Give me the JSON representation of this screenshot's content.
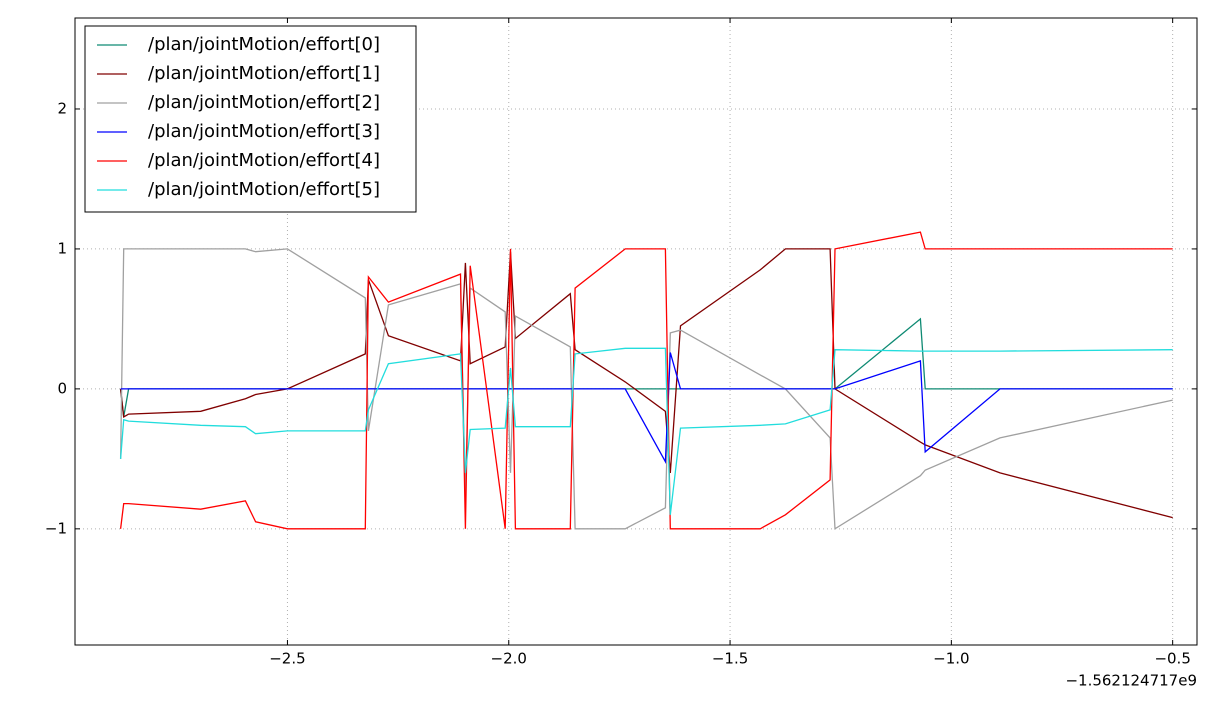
{
  "chart_data": {
    "type": "line",
    "x": [
      -2.877,
      -2.87,
      -2.859,
      -2.696,
      -2.595,
      -2.572,
      -2.5,
      -2.324,
      -2.317,
      -2.272,
      -2.109,
      -2.098,
      -2.087,
      -2.008,
      -1.996,
      -1.985,
      -1.861,
      -1.85,
      -1.737,
      -1.646,
      -1.635,
      -1.612,
      -1.432,
      -1.375,
      -1.274,
      -1.263,
      -1.07,
      -1.059,
      -0.89,
      -0.5
    ],
    "x_offset_label": "−1.562124717e9",
    "series": [
      {
        "name": "/plan/jointMotion/effort[0]",
        "color": "#0e8a73",
        "values": [
          0,
          -0.2,
          0,
          0,
          0,
          0,
          0,
          0,
          0,
          0,
          0,
          0,
          0,
          0,
          0,
          0,
          0,
          0,
          0,
          0,
          0,
          0,
          0,
          0,
          0,
          0,
          0.5,
          0,
          0,
          0
        ]
      },
      {
        "name": "/plan/jointMotion/effort[1]",
        "color": "#800000",
        "values": [
          0,
          -0.2,
          -0.18,
          -0.16,
          -0.07,
          -0.04,
          0,
          0.25,
          0.78,
          0.38,
          0.2,
          0.9,
          0.18,
          0.3,
          0.98,
          0.36,
          0.68,
          0.28,
          0.05,
          -0.16,
          -0.6,
          0.45,
          0.85,
          1.0,
          1.0,
          0,
          -0.38,
          -0.4,
          -0.6,
          -0.92
        ]
      },
      {
        "name": "/plan/jointMotion/effort[2]",
        "color": "#a0a0a0",
        "values": [
          -0.5,
          1.0,
          1.0,
          1.0,
          1.0,
          0.98,
          1.0,
          0.65,
          -0.3,
          0.6,
          0.75,
          -0.8,
          0.72,
          0.55,
          -0.6,
          0.52,
          0.3,
          -1.0,
          -1.0,
          -0.85,
          0.4,
          0.42,
          0.1,
          0,
          -0.35,
          -1.0,
          -0.62,
          -0.58,
          -0.35,
          -0.08
        ]
      },
      {
        "name": "/plan/jointMotion/effort[3]",
        "color": "#0000ff",
        "values": [
          0,
          0,
          0,
          0,
          0,
          0,
          0,
          0,
          0,
          0,
          0,
          0,
          0,
          0,
          0,
          0,
          0,
          0,
          0,
          -0.52,
          0.26,
          0,
          0,
          0,
          0,
          0,
          0.2,
          -0.45,
          0,
          0
        ]
      },
      {
        "name": "/plan/jointMotion/effort[4]",
        "color": "#ff0000",
        "values": [
          -1.0,
          -0.82,
          -0.82,
          -0.86,
          -0.8,
          -0.95,
          -1.0,
          -1.0,
          0.8,
          0.62,
          0.82,
          -1.0,
          0.88,
          -1.0,
          1.0,
          -1.0,
          -1.0,
          0.72,
          1.0,
          1.0,
          -1.0,
          -1.0,
          -1.0,
          -0.9,
          -0.65,
          1.0,
          1.12,
          1.0,
          1.0,
          1.0
        ]
      },
      {
        "name": "/plan/jointMotion/effort[5]",
        "color": "#22dddd",
        "values": [
          -0.5,
          -0.22,
          -0.23,
          -0.26,
          -0.27,
          -0.32,
          -0.3,
          -0.3,
          -0.15,
          0.18,
          0.25,
          -0.6,
          -0.29,
          -0.28,
          0.15,
          -0.27,
          -0.27,
          0.25,
          0.29,
          0.29,
          -0.9,
          -0.28,
          -0.26,
          -0.25,
          -0.15,
          0.28,
          0.27,
          0.27,
          0.27,
          0.28
        ]
      }
    ],
    "xlim": [
      -2.98,
      -0.445
    ],
    "ylim": [
      -1.83,
      2.65
    ],
    "xticks": [
      {
        "value": -2.5,
        "label": "−2.5"
      },
      {
        "value": -2.0,
        "label": "−2.0"
      },
      {
        "value": -1.5,
        "label": "−1.5"
      },
      {
        "value": -1.0,
        "label": "−1.0"
      },
      {
        "value": -0.5,
        "label": "−0.5"
      }
    ],
    "yticks": [
      {
        "value": -1,
        "label": "−1"
      },
      0,
      1,
      2
    ],
    "grid": true,
    "legend": "upper left"
  }
}
